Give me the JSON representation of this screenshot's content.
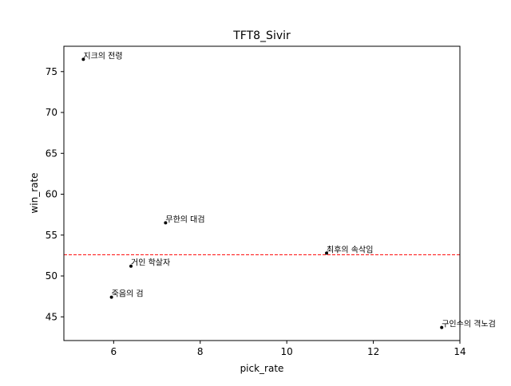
{
  "chart_data": {
    "type": "scatter",
    "title": "TFT8_Sivir",
    "xlabel": "pick_rate",
    "ylabel": "win_rate",
    "xlim": [
      4.85,
      14.0
    ],
    "ylim": [
      42.1,
      78.1
    ],
    "xticks": [
      "6",
      "8",
      "10",
      "12",
      "14"
    ],
    "yticks": [
      "45",
      "50",
      "55",
      "60",
      "65",
      "70",
      "75"
    ],
    "points": [
      {
        "label": "지크의 전령",
        "x": 5.3,
        "y": 76.5
      },
      {
        "label": "무한의 대검",
        "x": 7.2,
        "y": 56.5
      },
      {
        "label": "거인 학살자",
        "x": 6.4,
        "y": 51.2
      },
      {
        "label": "죽음의 검",
        "x": 5.95,
        "y": 47.4
      },
      {
        "label": "최후의 속삭임",
        "x": 10.92,
        "y": 52.8
      },
      {
        "label": "구인수의 격노검",
        "x": 13.58,
        "y": 43.7
      }
    ],
    "reference_line": {
      "y": 52.6,
      "color": "#ff0000",
      "style": "dashed"
    },
    "grid": false,
    "colors": {
      "points": "#000000",
      "reference": "#ff0000"
    }
  }
}
